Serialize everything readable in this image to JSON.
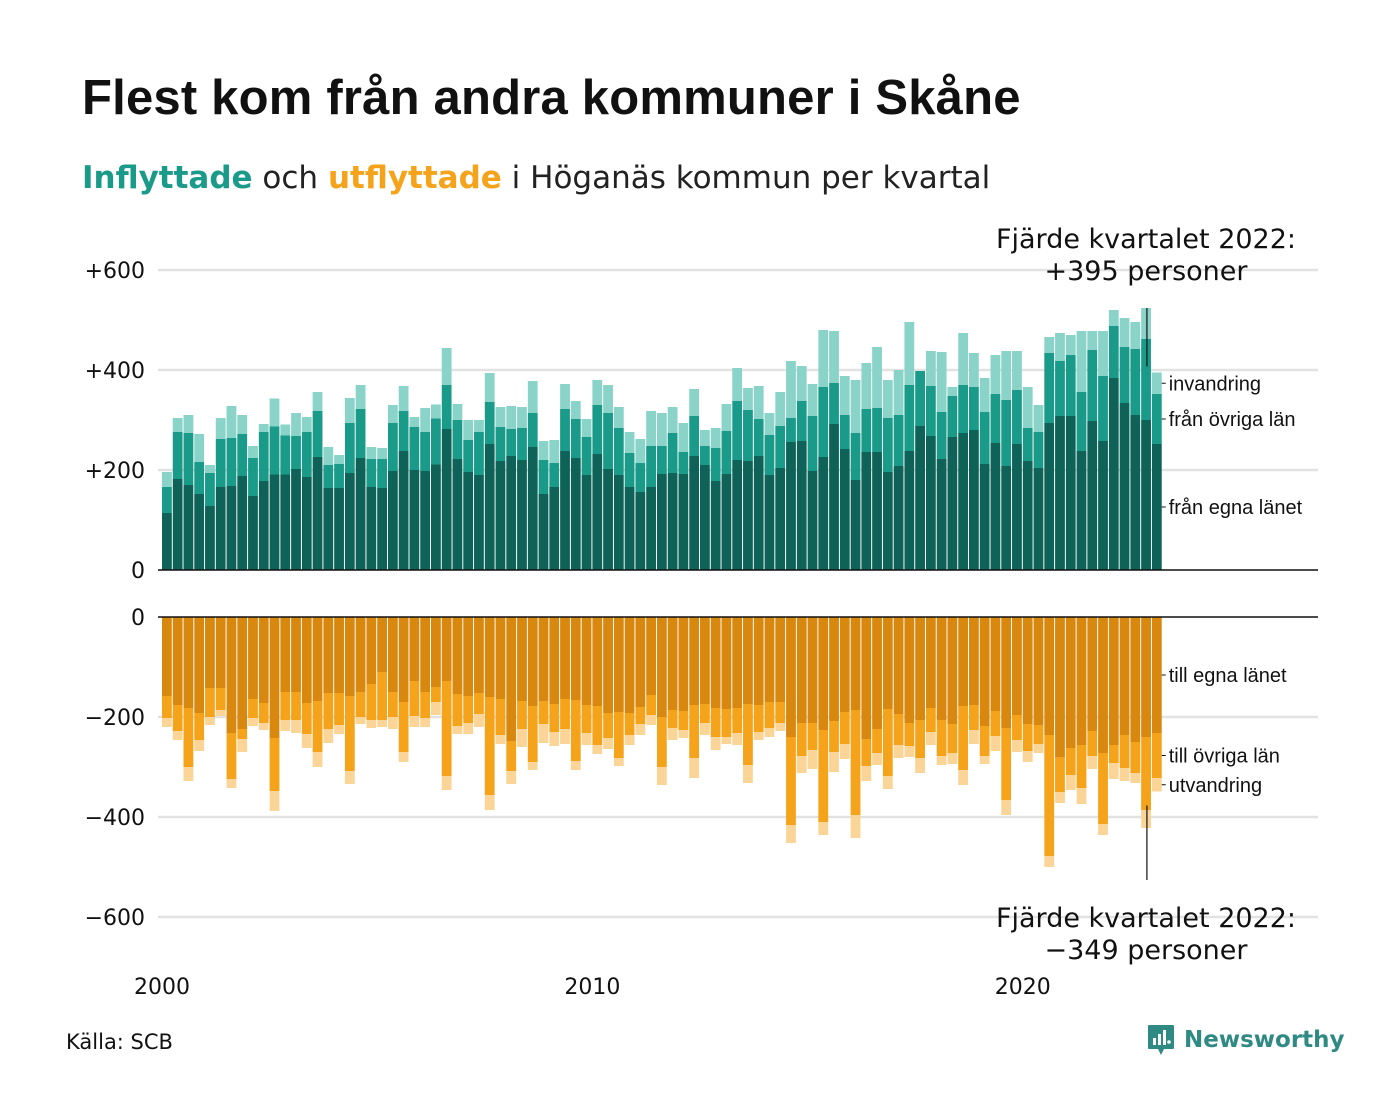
{
  "title": "Flest kom från andra kommuner i Skåne",
  "subtitle": {
    "in_word": "Inflyttade",
    "and_word": "och",
    "out_word": "utflyttade",
    "rest": "i Höganäs kommun per kvartal"
  },
  "source": "Källa: SCB",
  "brand": {
    "name": "Newsworthy",
    "icon": "newsworthy-logo-icon"
  },
  "colors": {
    "in_egna": "#0f6258",
    "in_ovriga": "#1a9b8a",
    "in_invandring": "#8ad3c8",
    "out_egna": "#d8870f",
    "out_ovriga": "#f5a31a",
    "out_utvandring": "#fad597",
    "grid": "#e2e2e2",
    "axis": "#111111"
  },
  "chart_data": [
    {
      "type": "bar",
      "stacked": true,
      "title": "Flest kom från andra kommuner i Skåne",
      "subtitle": "Inflyttade och utflyttade i Höganäs kommun per kvartal",
      "panel": "inflyttade",
      "xlabel": "",
      "ylabel": "",
      "x_start": "2000-Q1",
      "x_end": "2022-Q4",
      "x_tick_labels": [
        "2000",
        "2010",
        "2020"
      ],
      "ylim": [
        0,
        600
      ],
      "y_ticks": [
        0,
        200,
        400,
        600
      ],
      "y_tick_labels": [
        "0",
        "+200",
        "+400",
        "+600"
      ],
      "grid": true,
      "series": [
        {
          "name": "från egna länet",
          "values": [
            114,
            182,
            170,
            152,
            128,
            166,
            168,
            188,
            148,
            178,
            191,
            191,
            202,
            186,
            226,
            164,
            164,
            194,
            224,
            166,
            164,
            198,
            238,
            200,
            198,
            211,
            282,
            222,
            196,
            190,
            252,
            218,
            228,
            220,
            246,
            152,
            166,
            238,
            224,
            190,
            232,
            202,
            190,
            166,
            156,
            166,
            192,
            194,
            192,
            228,
            210,
            178,
            192,
            220,
            218,
            228,
            190,
            204,
            256,
            258,
            198,
            226,
            292,
            242,
            180,
            236,
            236,
            196,
            208,
            238,
            288,
            268,
            222,
            266,
            274,
            280,
            212,
            254,
            208,
            252,
            218,
            204,
            294,
            308,
            308,
            238,
            298,
            258,
            384,
            334,
            310,
            300,
            252
          ]
        },
        {
          "name": "från övriga län",
          "values": [
            52,
            94,
            104,
            64,
            66,
            96,
            96,
            84,
            76,
            98,
            96,
            78,
            66,
            90,
            92,
            46,
            48,
            100,
            98,
            56,
            58,
            96,
            80,
            86,
            78,
            92,
            88,
            78,
            64,
            86,
            84,
            68,
            54,
            64,
            68,
            68,
            48,
            84,
            78,
            76,
            98,
            112,
            94,
            68,
            58,
            82,
            56,
            80,
            44,
            80,
            38,
            66,
            86,
            118,
            102,
            74,
            80,
            84,
            48,
            80,
            110,
            140,
            82,
            68,
            94,
            86,
            88,
            108,
            102,
            132,
            110,
            100,
            94,
            82,
            96,
            86,
            104,
            98,
            132,
            108,
            66,
            72,
            140,
            110,
            122,
            118,
            142,
            130,
            104,
            112,
            132,
            162,
            100
          ]
        },
        {
          "name": "invandring",
          "values": [
            30,
            28,
            36,
            56,
            16,
            42,
            64,
            38,
            24,
            16,
            56,
            22,
            46,
            30,
            38,
            36,
            18,
            50,
            48,
            24,
            22,
            36,
            50,
            20,
            48,
            28,
            74,
            32,
            40,
            24,
            58,
            40,
            46,
            42,
            64,
            38,
            46,
            50,
            36,
            36,
            50,
            56,
            42,
            42,
            48,
            70,
            66,
            52,
            58,
            54,
            32,
            40,
            54,
            66,
            44,
            66,
            44,
            68,
            114,
            70,
            64,
            114,
            104,
            78,
            106,
            92,
            122,
            76,
            90,
            126,
            0,
            70,
            120,
            18,
            104,
            68,
            68,
            78,
            98,
            78,
            82,
            54,
            32,
            56,
            40,
            122,
            38,
            90,
            32,
            58,
            54,
            62,
            43
          ]
        }
      ]
    },
    {
      "type": "bar",
      "stacked": true,
      "panel": "utflyttade",
      "xlabel": "",
      "ylabel": "",
      "x_start": "2000-Q1",
      "x_end": "2022-Q4",
      "x_tick_labels": [
        "2000",
        "2010",
        "2020"
      ],
      "ylim": [
        -600,
        0
      ],
      "y_ticks": [
        0,
        -200,
        -400,
        -600
      ],
      "y_tick_labels": [
        "0",
        "−200",
        "−400",
        "−600"
      ],
      "grid": true,
      "series": [
        {
          "name": "till egna länet",
          "values": [
            -158,
            -176,
            -182,
            -192,
            -142,
            -142,
            -232,
            -224,
            -164,
            -172,
            -242,
            -150,
            -150,
            -172,
            -168,
            -152,
            -152,
            -158,
            -150,
            -134,
            -110,
            -150,
            -170,
            -128,
            -150,
            -140,
            -128,
            -154,
            -158,
            -152,
            -160,
            -164,
            -248,
            -168,
            -178,
            -168,
            -174,
            -164,
            -166,
            -176,
            -178,
            -192,
            -190,
            -192,
            -180,
            -156,
            -200,
            -186,
            -188,
            -176,
            -174,
            -182,
            -184,
            -182,
            -174,
            -176,
            -170,
            -170,
            -240,
            -212,
            -212,
            -226,
            -208,
            -190,
            -186,
            -244,
            -224,
            -184,
            -194,
            -212,
            -206,
            -182,
            -206,
            -214,
            -178,
            -176,
            -218,
            -188,
            -222,
            -196,
            -214,
            -216,
            -236,
            -280,
            -262,
            -256,
            -228,
            -272,
            -256,
            -236,
            -250,
            -240,
            -232
          ]
        },
        {
          "name": "till övriga län",
          "values": [
            -44,
            -52,
            -118,
            -54,
            -58,
            -44,
            -92,
            -20,
            -38,
            -40,
            -106,
            -56,
            -56,
            -62,
            -102,
            -72,
            -64,
            -150,
            -50,
            -72,
            -96,
            -50,
            -100,
            -70,
            -52,
            -30,
            -190,
            -64,
            -54,
            -42,
            -196,
            -72,
            -60,
            -56,
            -112,
            -46,
            -56,
            -60,
            -122,
            -56,
            -78,
            -50,
            -92,
            -44,
            -34,
            -40,
            -100,
            -36,
            -38,
            -106,
            -38,
            -58,
            -56,
            -50,
            -122,
            -54,
            -52,
            -42,
            -176,
            -66,
            -54,
            -184,
            -62,
            -64,
            -210,
            -54,
            -48,
            -134,
            -62,
            -46,
            -76,
            -48,
            -72,
            -58,
            -128,
            -50,
            -60,
            -50,
            -144,
            -50,
            -54,
            -38,
            -242,
            -70,
            -54,
            -86,
            -50,
            -142,
            -36,
            -66,
            -62,
            -146,
            -90
          ]
        },
        {
          "name": "utvandring",
          "values": [
            -18,
            -18,
            -28,
            -22,
            -16,
            -12,
            -18,
            -26,
            -16,
            -14,
            -40,
            -22,
            -26,
            -28,
            -30,
            -28,
            -18,
            -26,
            -14,
            -16,
            -14,
            -24,
            -20,
            -22,
            -18,
            -26,
            -28,
            -16,
            -22,
            -26,
            -30,
            -18,
            -26,
            -36,
            -16,
            -38,
            -28,
            -30,
            -18,
            -24,
            -18,
            -22,
            -16,
            -20,
            -22,
            -20,
            -36,
            -24,
            -16,
            -40,
            -24,
            -26,
            -14,
            -24,
            -36,
            -16,
            -18,
            -16,
            -36,
            -34,
            -38,
            -26,
            -40,
            -30,
            -46,
            -30,
            -24,
            -26,
            -26,
            -22,
            -30,
            -26,
            -18,
            -22,
            -30,
            -28,
            -16,
            -30,
            -30,
            -24,
            -22,
            -18,
            -22,
            -22,
            -30,
            -32,
            -26,
            -22,
            -32,
            -26,
            -20,
            -36,
            -27
          ]
        }
      ]
    }
  ],
  "annotations": {
    "top": {
      "line1": "Fjärde kvartalet 2022:",
      "line2": "+395 personer"
    },
    "bottom": {
      "line1": "Fjärde kvartalet 2022:",
      "line2": "−349 personer"
    }
  },
  "series_labels": {
    "in": [
      "invandring",
      "från övriga län",
      "från egna länet"
    ],
    "out": [
      "till egna länet",
      "till övriga län",
      "utvandring"
    ]
  }
}
